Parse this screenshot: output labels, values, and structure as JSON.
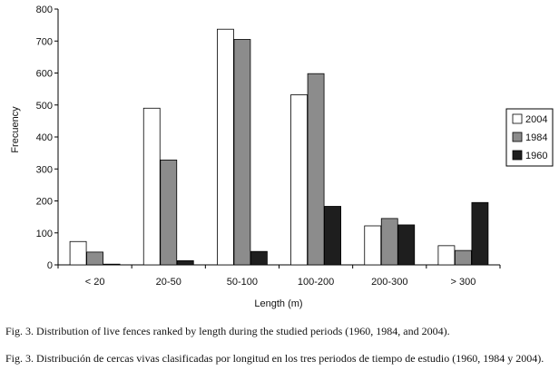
{
  "chart_data": {
    "type": "bar",
    "categories": [
      "< 20",
      "20-50",
      "50-100",
      "100-200",
      "200-300",
      "> 300"
    ],
    "series": [
      {
        "name": "2004",
        "values": [
          73,
          490,
          737,
          532,
          122,
          60
        ],
        "color": "#ffffff"
      },
      {
        "name": "1984",
        "values": [
          40,
          328,
          705,
          598,
          145,
          45
        ],
        "color": "#8c8c8c"
      },
      {
        "name": "1960",
        "values": [
          2,
          13,
          42,
          183,
          125,
          195
        ],
        "color": "#1e1e1e"
      }
    ],
    "title": "",
    "xlabel": "Length (m)",
    "ylabel": "Frecuency",
    "ylim": [
      0,
      800
    ],
    "yticks": [
      0,
      100,
      200,
      300,
      400,
      500,
      600,
      700,
      800
    ],
    "grid": false,
    "legend_position": "right"
  },
  "captions": {
    "english": "Fig. 3. Distribution of live fences ranked by length during the studied periods (1960, 1984, and 2004).",
    "spanish": "Fig. 3. Distribución de cercas vivas clasificadas por longitud en los tres periodos de tiempo de estudio (1960, 1984 y 2004)."
  }
}
